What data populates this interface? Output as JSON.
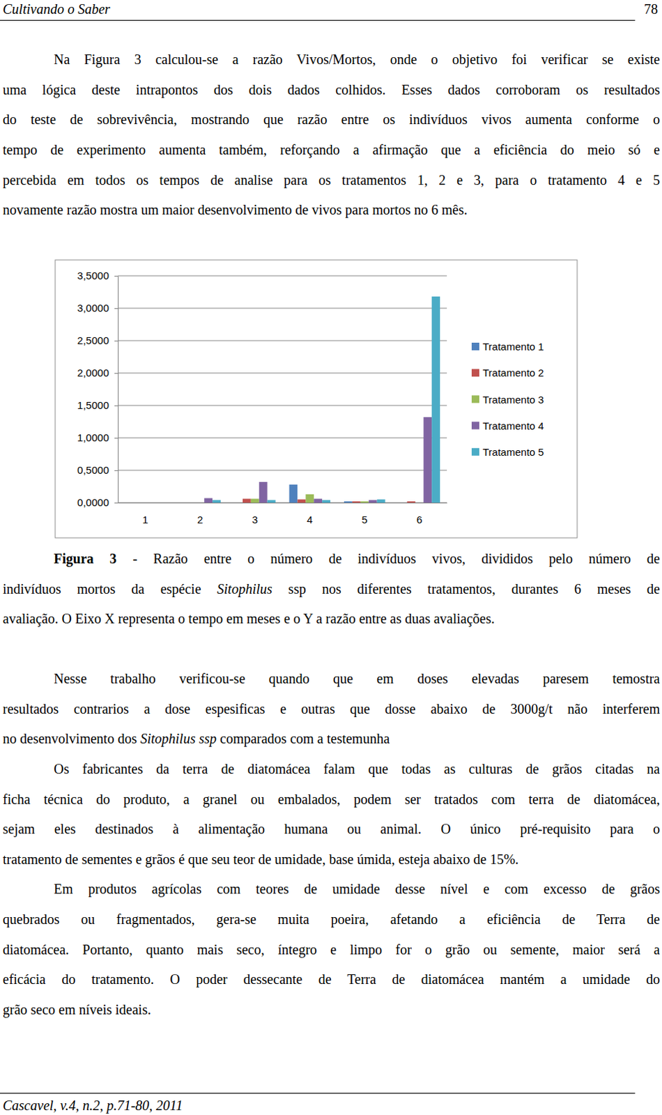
{
  "header": {
    "title": "Cultivando o Saber",
    "page": "78"
  },
  "text_before": [
    {
      "lines": [
        "Na Figura 3 calculou-se a razão Vivos/Mortos, onde o objetivo foi verificar se existe",
        "uma lógica deste intrapontos dos dois dados colhidos. Esses dados corroboram os resultados",
        "do teste de sobrevivência, mostrando que razão entre os indivíduos vivos aumenta conforme o",
        "tempo de experimento aumenta também, reforçando a afirmação que a eficiência do meio só e",
        "percebida em todos os tempos de analise para os tratamentos 1, 2 e 3, para o tratamento 4 e 5",
        "novamente razão mostra um maior desenvolvimento de vivos para mortos no 6 mês."
      ]
    }
  ],
  "chart_data": {
    "type": "bar",
    "categories": [
      "1",
      "2",
      "3",
      "4",
      "5",
      "6"
    ],
    "series": [
      {
        "name": "Tratamento 1",
        "color": "#4f81bd",
        "values": [
          0,
          0,
          0,
          0.28,
          0.02,
          0
        ]
      },
      {
        "name": "Tratamento 2",
        "color": "#c0504d",
        "values": [
          0,
          0,
          0.06,
          0.05,
          0.02,
          0.02
        ]
      },
      {
        "name": "Tratamento 3",
        "color": "#9bbb59",
        "values": [
          0,
          0,
          0.06,
          0.13,
          0.02,
          0
        ]
      },
      {
        "name": "Tratamento 4",
        "color": "#8064a2",
        "values": [
          0,
          0.07,
          0.32,
          0.06,
          0.04,
          1.32
        ]
      },
      {
        "name": "Tratamento 5",
        "color": "#4bacc6",
        "values": [
          0,
          0.04,
          0.04,
          0.04,
          0.05,
          3.18
        ]
      }
    ],
    "ylim": [
      0,
      3.5
    ],
    "yticks": [
      {
        "value": 0,
        "label": "0,0000"
      },
      {
        "value": 0.5,
        "label": "0,5000"
      },
      {
        "value": 1,
        "label": "1,0000"
      },
      {
        "value": 1.5,
        "label": "1,5000"
      },
      {
        "value": 2,
        "label": "2,0000"
      },
      {
        "value": 2.5,
        "label": "2,5000"
      },
      {
        "value": 3,
        "label": "3,0000"
      },
      {
        "value": 3.5,
        "label": "3,5000"
      }
    ],
    "grid": true,
    "legend": "right"
  },
  "caption": {
    "lines": [
      [
        {
          "text": "Figura 3",
          "bold": true
        },
        " - Razão entre o número de indivíduos vivos, divididos pelo número de"
      ],
      [
        "indivíduos mortos da espécie ",
        {
          "text": "Sitophilus",
          "italic": true
        },
        " ssp nos diferentes tratamentos, durantes 6 meses de"
      ],
      "avaliação.  O Eixo X representa o tempo em meses e o Y a razão entre as duas avaliações."
    ]
  },
  "text_after": [
    {
      "lines": [
        "Nesse trabalho verificou-se quando que em doses elevadas paresem temostra",
        "resultados contrarios a dose espesificas e outras que dosse abaixo de 3000g/t não interferem",
        [
          "no desenvolvimento dos ",
          {
            "text": "Sitophilus ssp",
            "italic": true
          },
          " comparados com a testemunha"
        ]
      ]
    },
    {
      "lines": [
        "Os fabricantes da terra de diatomácea falam que todas as culturas de grãos citadas na",
        "ficha técnica do produto, a granel ou embalados, podem ser tratados com terra de diatomácea,",
        "sejam eles destinados à alimentação humana ou animal. O único pré-requisito para o",
        "tratamento de sementes e grãos é que seu teor de umidade, base úmida, esteja abaixo de 15%."
      ]
    },
    {
      "lines": [
        "Em produtos agrícolas com teores de umidade desse nível e com excesso de grãos",
        "quebrados ou fragmentados, gera-se muita poeira, afetando a eficiência de Terra de",
        "diatomácea. Portanto, quanto mais seco, íntegro e limpo for o grão ou semente, maior será a",
        "eficácia do tratamento. O poder dessecante de Terra de diatomácea mantém a umidade do",
        "grão seco em níveis ideais."
      ]
    }
  ],
  "footer": "Cascavel, v.4, n.2, p.71-80, 2011"
}
